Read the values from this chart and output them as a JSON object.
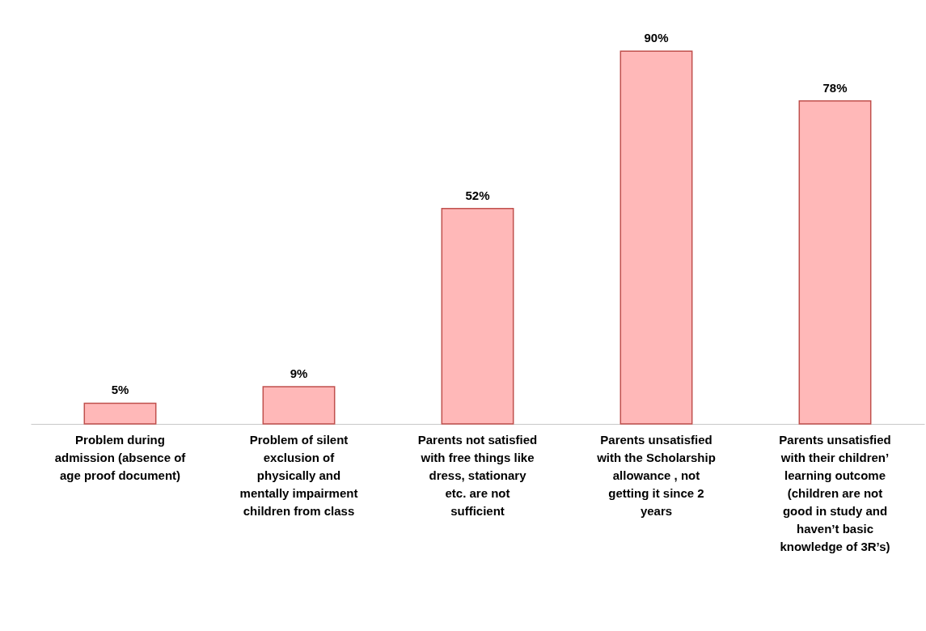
{
  "chart_data": {
    "type": "bar",
    "categories": [
      "Problem during admission (absence of age proof document)",
      "Problem of silent exclusion of physically and mentally impairment children from class",
      "Parents not satisfied with free things like dress, stationary etc. are not sufficient",
      "Parents unsatisfied with the Scholarship allowance , not getting it since 2 years",
      "Parents unsatisfied with their children’ learning outcome (children are not good in study and haven’t basic knowledge of 3R’s)"
    ],
    "values": [
      5,
      9,
      52,
      90,
      78
    ],
    "color": "#ffb8b8",
    "value_labels": [
      "5%",
      "9%",
      "52%",
      "90%",
      "78%"
    ]
  }
}
